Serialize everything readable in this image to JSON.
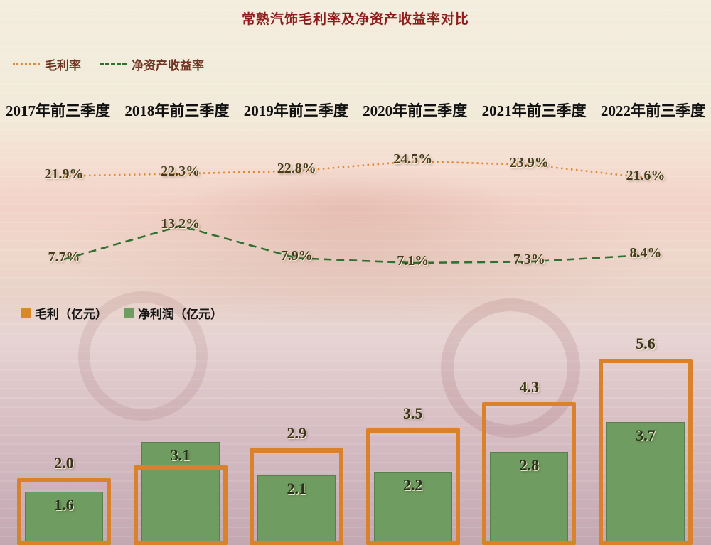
{
  "title": "常熟汽饰毛利率及净资产收益率对比",
  "categories": [
    "2017年前三季度",
    "2018年前三季度",
    "2019年前三季度",
    "2020年前三季度",
    "2021年前三季度",
    "2022年前三季度"
  ],
  "line_legend": [
    {
      "label": "毛利率",
      "color": "#e08a2e",
      "style": "dotted"
    },
    {
      "label": "净资产收益率",
      "color": "#2f7031",
      "style": "dashed"
    }
  ],
  "bar_legend": [
    {
      "label": "毛利（亿元）",
      "color": "#d9882f"
    },
    {
      "label": "净利润（亿元）",
      "color": "#6f9c60"
    }
  ],
  "chart_data": [
    {
      "type": "line",
      "categories": [
        "2017年前三季度",
        "2018年前三季度",
        "2019年前三季度",
        "2020年前三季度",
        "2021年前三季度",
        "2022年前三季度"
      ],
      "series": [
        {
          "name": "毛利率",
          "values": [
            21.9,
            22.3,
            22.8,
            24.5,
            23.9,
            21.6
          ],
          "labels": [
            "21.9%",
            "22.3%",
            "22.8%",
            "24.5%",
            "23.9%",
            "21.6%"
          ],
          "color": "#e08a2e",
          "dash": "dotted",
          "ylim": [
            21.6,
            24.5
          ]
        },
        {
          "name": "净资产收益率",
          "values": [
            7.7,
            13.2,
            7.9,
            7.1,
            7.3,
            8.4
          ],
          "labels": [
            "7.7%",
            "13.2%",
            "7.9%",
            "7.1%",
            "7.3%",
            "8.4%"
          ],
          "color": "#2f7031",
          "dash": "dashed",
          "ylim": [
            7.1,
            13.2
          ]
        }
      ],
      "legend_position": "top-left",
      "grid": false
    },
    {
      "type": "bar",
      "categories": [
        "2017年前三季度",
        "2018年前三季度",
        "2019年前三季度",
        "2020年前三季度",
        "2021年前三季度",
        "2022年前三季度"
      ],
      "series": [
        {
          "name": "毛利（亿元）",
          "values": [
            2.0,
            2.4,
            2.9,
            3.5,
            4.3,
            5.6
          ],
          "labels": [
            "2.0",
            "",
            "2.9",
            "3.5",
            "4.3",
            "5.6"
          ],
          "color": "#d9822b",
          "style": "outline"
        },
        {
          "name": "净利润（亿元）",
          "values": [
            1.6,
            3.1,
            2.1,
            2.2,
            2.8,
            3.7
          ],
          "labels": [
            "1.6",
            "3.1",
            "2.1",
            "2.2",
            "2.8",
            "3.7"
          ],
          "color": "#6f9c60",
          "style": "filled"
        }
      ]
    }
  ]
}
